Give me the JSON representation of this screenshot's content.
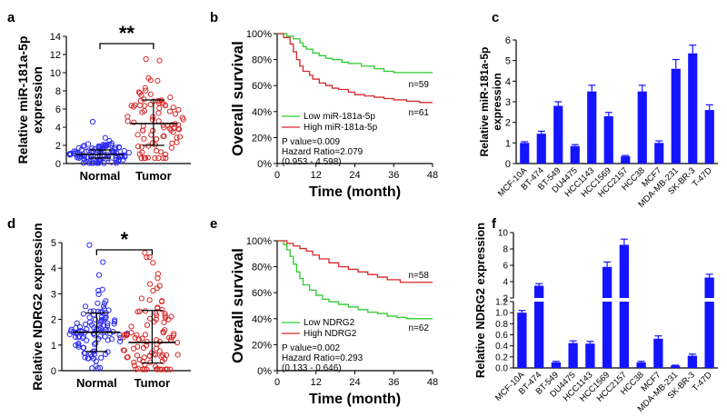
{
  "panels": {
    "a": {
      "label": "a"
    },
    "b": {
      "label": "b"
    },
    "c": {
      "label": "c"
    },
    "d": {
      "label": "d"
    },
    "e": {
      "label": "e"
    },
    "f": {
      "label": "f"
    }
  },
  "colors": {
    "blue": "#2a2af0",
    "red": "#d62828",
    "green": "#2ecc2e",
    "bar": "#1414ff",
    "black": "#000000"
  },
  "chart_data": [
    {
      "id": "a",
      "type": "scatter",
      "ylabel": "Relative miR-181a-5p expression",
      "ylabel_lines": [
        "Relative miR-181a-5p",
        "expression"
      ],
      "categories": [
        "Normal",
        "Tumor"
      ],
      "ylim": [
        0,
        14
      ],
      "yticks": [
        0,
        2,
        4,
        6,
        8,
        10,
        12,
        14
      ],
      "means": [
        1.0,
        4.4
      ],
      "sd": [
        [
          0.6,
          1.5
        ],
        [
          2.0,
          7.0
        ]
      ],
      "significance": "**",
      "groups": [
        {
          "name": "Normal",
          "n": 110,
          "mean": 1.0,
          "spread": 0.7,
          "min": 0.05,
          "max": 4.6,
          "color": "blue"
        },
        {
          "name": "Tumor",
          "n": 90,
          "mean": 4.4,
          "spread": 2.4,
          "min": 0.6,
          "max": 11.5,
          "color": "red"
        }
      ]
    },
    {
      "id": "b",
      "type": "line",
      "xlabel": "Time (month)",
      "ylabel": "Overall survival",
      "xlim": [
        0,
        48
      ],
      "xticks": [
        0,
        12,
        24,
        36,
        48
      ],
      "ylim": [
        0,
        100
      ],
      "yticks": [
        "0%",
        "20%",
        "40%",
        "60%",
        "80%",
        "100%"
      ],
      "series": [
        {
          "name": "Low miR-181a-5p",
          "color": "green",
          "n_label": "n=59",
          "points": [
            [
              0,
              100
            ],
            [
              3,
              98
            ],
            [
              5,
              96
            ],
            [
              7,
              93
            ],
            [
              8,
              90
            ],
            [
              9,
              88
            ],
            [
              11,
              85
            ],
            [
              13,
              83
            ],
            [
              15,
              81
            ],
            [
              17,
              80
            ],
            [
              20,
              78
            ],
            [
              22,
              77
            ],
            [
              26,
              75
            ],
            [
              30,
              73
            ],
            [
              33,
              71
            ],
            [
              36,
              70
            ],
            [
              48,
              70
            ]
          ]
        },
        {
          "name": "High miR-181a-5p",
          "color": "red",
          "n_label": "n=61",
          "points": [
            [
              0,
              100
            ],
            [
              2,
              97
            ],
            [
              4,
              92
            ],
            [
              5,
              86
            ],
            [
              6,
              80
            ],
            [
              7,
              75
            ],
            [
              8,
              71
            ],
            [
              10,
              68
            ],
            [
              11,
              65
            ],
            [
              13,
              62
            ],
            [
              15,
              60
            ],
            [
              17,
              58
            ],
            [
              19,
              57
            ],
            [
              22,
              55
            ],
            [
              24,
              53
            ],
            [
              27,
              52
            ],
            [
              30,
              51
            ],
            [
              33,
              50
            ],
            [
              36,
              49
            ],
            [
              40,
              48
            ],
            [
              44,
              47
            ],
            [
              48,
              47
            ]
          ]
        }
      ],
      "stats": [
        "P value=0.009",
        "Hazard Ratio=2.079",
        "(0.953 - 4.598)"
      ]
    },
    {
      "id": "c",
      "type": "bar",
      "ylabel": "Relative miR-181a-5p expression",
      "ylabel_lines": [
        "Relative miR-181a-5p",
        "expression"
      ],
      "ylim": [
        0,
        6
      ],
      "yticks": [
        0,
        1,
        2,
        3,
        4,
        5,
        6
      ],
      "categories": [
        "MCF-10A",
        "BT-474",
        "BT-549",
        "DU4475",
        "HCC1143",
        "HCC1569",
        "HCC2157",
        "HCC38",
        "MCF7",
        "MDA-MB-231",
        "SK-BR-3",
        "T-47D"
      ],
      "values": [
        1.0,
        1.45,
        2.8,
        0.85,
        3.5,
        2.3,
        0.35,
        3.5,
        1.0,
        4.6,
        5.35,
        2.6
      ],
      "errors": [
        0.06,
        0.12,
        0.2,
        0.07,
        0.3,
        0.18,
        0.04,
        0.3,
        0.1,
        0.45,
        0.4,
        0.25
      ]
    },
    {
      "id": "d",
      "type": "scatter",
      "ylabel": "Relative NDRG2 expression",
      "categories": [
        "Normal",
        "Tumor"
      ],
      "ylim": [
        0,
        5
      ],
      "yticks": [
        0,
        1,
        2,
        3,
        4,
        5
      ],
      "means": [
        1.5,
        1.1
      ],
      "sd": [
        [
          0.75,
          2.25
        ],
        [
          0.3,
          2.35
        ]
      ],
      "significance": "*",
      "groups": [
        {
          "name": "Normal",
          "n": 110,
          "mean": 1.5,
          "spread": 0.55,
          "min": 0.1,
          "max": 4.9,
          "color": "blue"
        },
        {
          "name": "Tumor",
          "n": 100,
          "mean": 1.1,
          "spread": 0.9,
          "min": 0.05,
          "max": 4.6,
          "color": "red"
        }
      ]
    },
    {
      "id": "e",
      "type": "line",
      "xlabel": "Time (month)",
      "ylabel": "Overall survival",
      "xlim": [
        0,
        48
      ],
      "xticks": [
        0,
        12,
        24,
        36,
        48
      ],
      "ylim": [
        0,
        100
      ],
      "yticks": [
        "0%",
        "20%",
        "40%",
        "60%",
        "80%",
        "100%"
      ],
      "series": [
        {
          "name": "Low NDRG2",
          "color": "green",
          "n_label": "n=62",
          "points": [
            [
              0,
              100
            ],
            [
              2,
              97
            ],
            [
              3,
              93
            ],
            [
              4,
              88
            ],
            [
              5,
              82
            ],
            [
              6,
              76
            ],
            [
              7,
              71
            ],
            [
              8,
              66
            ],
            [
              10,
              62
            ],
            [
              12,
              58
            ],
            [
              14,
              55
            ],
            [
              16,
              53
            ],
            [
              19,
              51
            ],
            [
              22,
              49
            ],
            [
              25,
              47
            ],
            [
              28,
              45
            ],
            [
              31,
              44
            ],
            [
              34,
              42
            ],
            [
              37,
              41
            ],
            [
              40,
              40
            ],
            [
              48,
              40
            ]
          ]
        },
        {
          "name": "High NDRG2",
          "color": "red",
          "n_label": "n=58",
          "points": [
            [
              0,
              100
            ],
            [
              3,
              98
            ],
            [
              5,
              96
            ],
            [
              7,
              94
            ],
            [
              9,
              92
            ],
            [
              11,
              89
            ],
            [
              13,
              86
            ],
            [
              16,
              83
            ],
            [
              19,
              80
            ],
            [
              22,
              78
            ],
            [
              25,
              76
            ],
            [
              28,
              74
            ],
            [
              31,
              72
            ],
            [
              34,
              70
            ],
            [
              38,
              68
            ],
            [
              48,
              68
            ]
          ]
        }
      ],
      "stats": [
        "P value=0.002",
        "Hazard Ratio=0.293",
        "(0.133 - 0.646)"
      ]
    },
    {
      "id": "f",
      "type": "bar",
      "ylabel": "Relative NDRG2 expression",
      "broken_axis": true,
      "upper_ylim": [
        2,
        10
      ],
      "upper_yticks": [
        2,
        4,
        6,
        8,
        10
      ],
      "lower_ylim": [
        0,
        1.2
      ],
      "lower_yticks": [
        "0.0",
        "0.2",
        "0.4",
        "0.6",
        "0.8",
        "1.0",
        "1.2"
      ],
      "categories": [
        "MCF-10A",
        "BT-474",
        "BT-549",
        "DU4475",
        "HCC1143",
        "HCC1569",
        "HCC2157",
        "HCC38",
        "MCF7",
        "MDA-MB-231",
        "SK-BR-3",
        "T-47D"
      ],
      "values": [
        1.0,
        3.5,
        0.1,
        0.45,
        0.44,
        5.8,
        8.5,
        0.1,
        0.53,
        0.04,
        0.22,
        4.5
      ],
      "errors": [
        0.04,
        0.25,
        0.02,
        0.04,
        0.04,
        0.6,
        0.7,
        0.02,
        0.05,
        0.01,
        0.03,
        0.4
      ]
    }
  ]
}
